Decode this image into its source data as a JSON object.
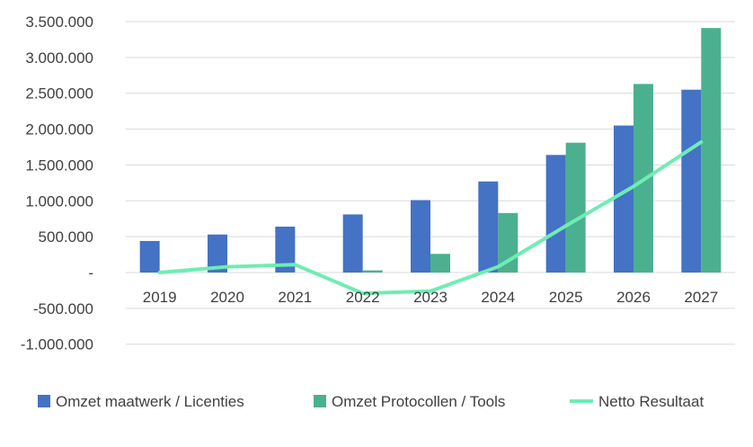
{
  "chart_data": {
    "type": "bar",
    "categories": [
      "2019",
      "2020",
      "2021",
      "2022",
      "2023",
      "2024",
      "2025",
      "2026",
      "2027"
    ],
    "series": [
      {
        "name": "Omzet maatwerk / Licenties",
        "type": "bar",
        "color": "#4472C4",
        "values": [
          440000,
          530000,
          640000,
          810000,
          1010000,
          1270000,
          1640000,
          2050000,
          2550000
        ]
      },
      {
        "name": "Omzet Protocollen / Tools",
        "type": "bar",
        "color": "#4BB08F",
        "values": [
          0,
          0,
          0,
          30000,
          260000,
          830000,
          1810000,
          2630000,
          3410000
        ]
      },
      {
        "name": "Netto Resultaat",
        "type": "line",
        "color": "#6EEDB3",
        "values": [
          0,
          80000,
          110000,
          -290000,
          -260000,
          80000,
          650000,
          1200000,
          1820000
        ]
      }
    ],
    "y_ticks": [
      "3.500.000",
      "3.000.000",
      "2.500.000",
      "2.000.000",
      "1.500.000",
      "1.000.000",
      "500.000",
      "-",
      "-500.000",
      "-1.000.000"
    ],
    "y_tick_values": [
      3500000,
      3000000,
      2500000,
      2000000,
      1500000,
      1000000,
      500000,
      0,
      -500000,
      -1000000
    ],
    "ylim": [
      -1000000,
      3500000
    ],
    "grid": true,
    "legend_position": "bottom"
  }
}
